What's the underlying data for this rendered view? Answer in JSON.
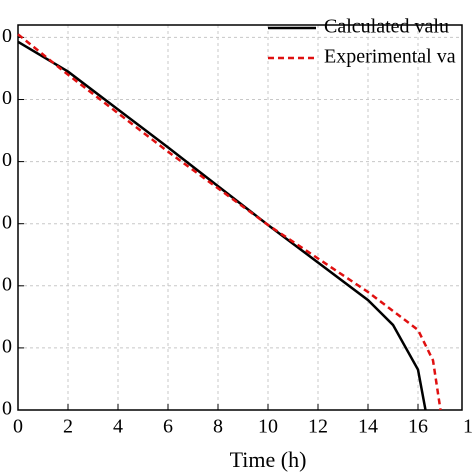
{
  "chart_data": {
    "type": "line",
    "xlabel": "Time (h)",
    "xlim": [
      0,
      18
    ],
    "xticks": [
      0,
      2,
      4,
      6,
      8,
      10,
      12,
      14,
      16,
      {
        "value": 18,
        "label": "1"
      }
    ],
    "ylim": [
      0,
      6.2
    ],
    "yticks": [
      {
        "value": 0,
        "label": "0"
      },
      {
        "value": 1,
        "label": "0"
      },
      {
        "value": 2,
        "label": "0"
      },
      {
        "value": 3,
        "label": "0"
      },
      {
        "value": 4,
        "label": "0"
      },
      {
        "value": 5,
        "label": "0"
      },
      {
        "value": 6,
        "label": "0"
      }
    ],
    "grid": true,
    "legend": "upper right",
    "series": [
      {
        "name": "Calculated valu",
        "color": "#000000",
        "dash": false,
        "x": [
          0,
          2,
          6,
          10,
          14,
          15,
          16,
          16.3
        ],
        "values": [
          5.93,
          5.45,
          4.23,
          2.98,
          1.77,
          1.37,
          0.65,
          0
        ]
      },
      {
        "name": "Experimental va",
        "color": "#e01010",
        "dash": true,
        "x": [
          0,
          2,
          6,
          10,
          14,
          16,
          16.6,
          16.9
        ],
        "values": [
          6.05,
          5.4,
          4.16,
          2.98,
          1.9,
          1.29,
          0.8,
          0
        ]
      }
    ]
  }
}
